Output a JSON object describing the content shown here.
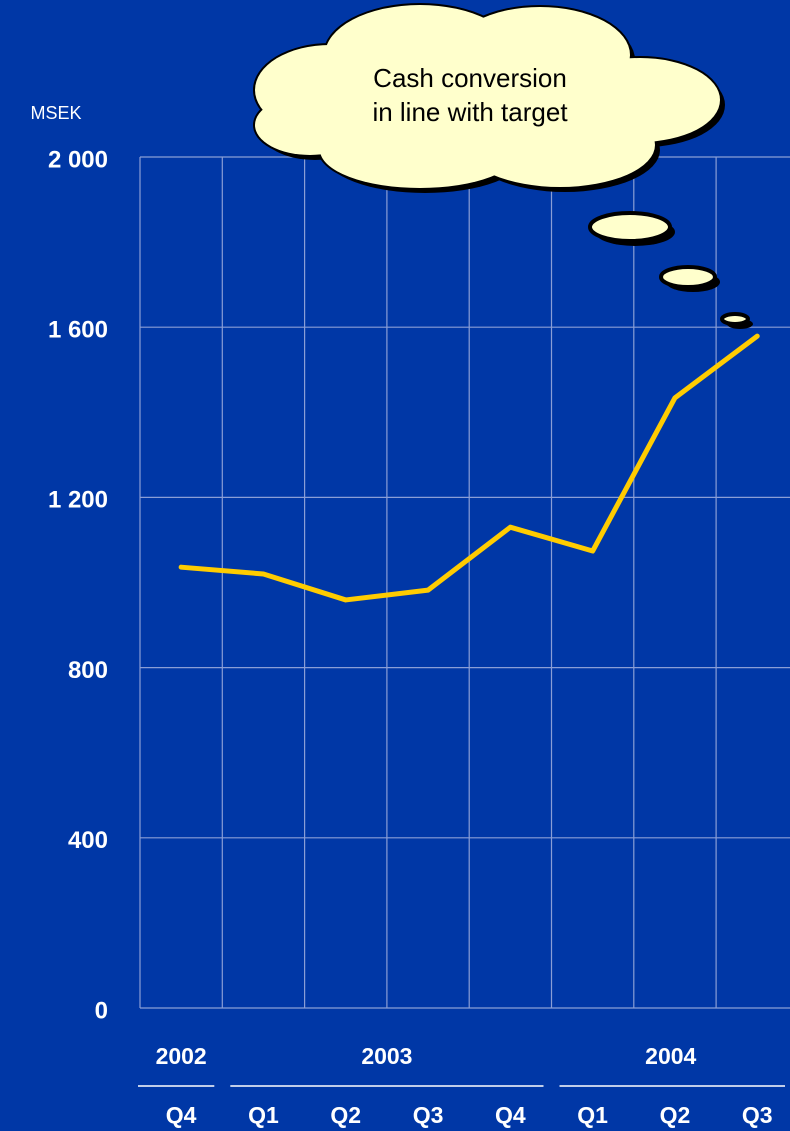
{
  "chart_data": {
    "type": "line",
    "y_axis_label": "MSEK",
    "annotation": [
      "Cash conversion",
      "in line with target"
    ],
    "categories": [
      "Q4",
      "Q1",
      "Q2",
      "Q3",
      "Q4",
      "Q1",
      "Q2",
      "Q3"
    ],
    "groups": [
      {
        "label": "2002",
        "count": 1
      },
      {
        "label": "2003",
        "count": 4
      },
      {
        "label": "2004",
        "count": 3
      }
    ],
    "series": [
      {
        "color": "#ffcc00",
        "values": [
          1036,
          1020,
          959,
          982,
          1130,
          1074,
          1434,
          1579
        ]
      }
    ],
    "ylim": [
      0,
      2000
    ],
    "yticks": [
      0,
      400,
      800,
      {
        "value": 1200,
        "label": "1 200"
      },
      {
        "value": 1600,
        "label": "1 600"
      },
      {
        "value": 2000,
        "label": "2 000"
      }
    ],
    "grid": true
  }
}
